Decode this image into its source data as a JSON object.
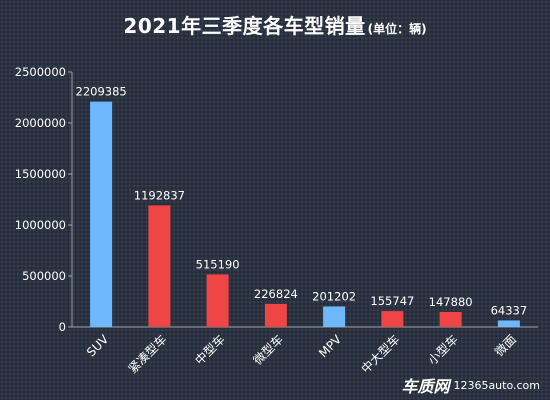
{
  "header": {
    "title": "2021年三季度各车型销量",
    "unit": "(单位：辆)"
  },
  "watermark": {
    "brand": "车质网",
    "url": "12365auto.com"
  },
  "colors": {
    "background": "#2b3241",
    "blue": "#6db8ff",
    "red": "#f04545",
    "text": "#ffffff",
    "axis": "#9aa3b0"
  },
  "chart_data": {
    "type": "bar",
    "title": "2021年三季度各车型销量",
    "subtitle": "(单位：辆)",
    "xlabel": "",
    "ylabel": "",
    "categories": [
      "SUV",
      "紧凑型车",
      "中型车",
      "微型车",
      "MPV",
      "中大型车",
      "小型车",
      "微面"
    ],
    "values": [
      2209385,
      1192837,
      515190,
      226824,
      201202,
      155747,
      147880,
      64337
    ],
    "bar_colors": [
      "#6db8ff",
      "#f04545",
      "#f04545",
      "#f04545",
      "#6db8ff",
      "#f04545",
      "#f04545",
      "#6db8ff"
    ],
    "ylim": [
      0,
      2500000
    ],
    "yticks": [
      0,
      500000,
      1000000,
      1500000,
      2000000,
      2500000
    ],
    "ytick_labels": [
      "0",
      "500000",
      "1000000",
      "1500000",
      "2000000",
      "2500000"
    ],
    "grid": false,
    "legend": "none",
    "data_labels": true
  }
}
